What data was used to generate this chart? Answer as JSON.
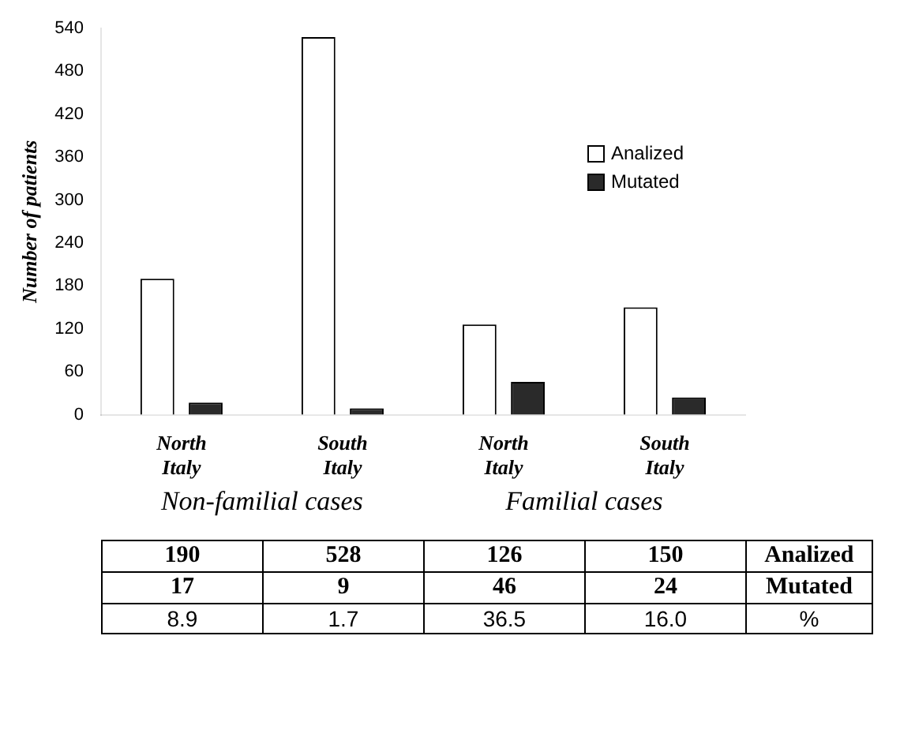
{
  "chart_data": {
    "type": "bar",
    "ylabel": "Number of patients",
    "categories": [
      "North Italy",
      "South Italy",
      "North Italy",
      "South Italy"
    ],
    "series": [
      {
        "name": "Analized",
        "color": "#ffffff",
        "values": [
          190,
          528,
          126,
          150
        ]
      },
      {
        "name": "Mutated",
        "color": "#2a2a2a",
        "values": [
          17,
          9,
          46,
          24
        ]
      }
    ],
    "ylim": [
      0,
      540
    ],
    "yticks": [
      0,
      60,
      120,
      180,
      240,
      300,
      360,
      420,
      480,
      540
    ],
    "legend": "top right",
    "grid": false,
    "data_labels": true,
    "annotations": [
      "Non-familial cases",
      "Familial cases",
      "8.9",
      "1.7",
      "36.5",
      "16.0",
      "%"
    ]
  }
}
